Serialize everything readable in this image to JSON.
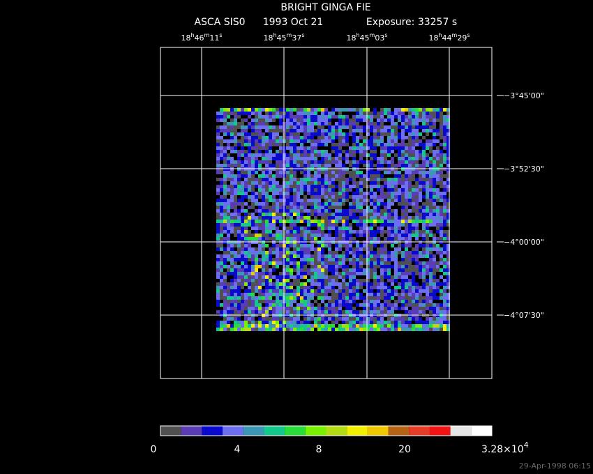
{
  "title": "BRIGHT GINGA FIE",
  "subtitle": {
    "instrument": "ASCA SIS0",
    "date": "1993 Oct 21",
    "exposure": "Exposure: 33257 s"
  },
  "ra_labels": [
    [
      "18",
      "h",
      "46",
      "m",
      "11",
      "s"
    ],
    [
      "18",
      "h",
      "45",
      "m",
      "37",
      "s"
    ],
    [
      "18",
      "h",
      "45",
      "m",
      "03",
      "s"
    ],
    [
      "18",
      "h",
      "44",
      "m",
      "29",
      "s"
    ]
  ],
  "dec_labels": [
    "−3°45'00\"",
    "−3°52'30\"",
    "−4°00'00\"",
    "−4°07'30\""
  ],
  "colorbar": {
    "colors": [
      "#505050",
      "#5a3cb4",
      "#0a0acc",
      "#6e6ef0",
      "#3c96b4",
      "#14c88c",
      "#28dc3c",
      "#78f000",
      "#b4dc14",
      "#f0f000",
      "#f0c800",
      "#b46414",
      "#e63c28",
      "#f01414",
      "#e6e6e6",
      "#ffffff"
    ],
    "labels": [
      "0",
      "4",
      "8",
      "20",
      {
        "mantissa": "3.28×10",
        "exponent": "4"
      }
    ]
  },
  "timestamp": "29-Apr-1998 06:15"
}
